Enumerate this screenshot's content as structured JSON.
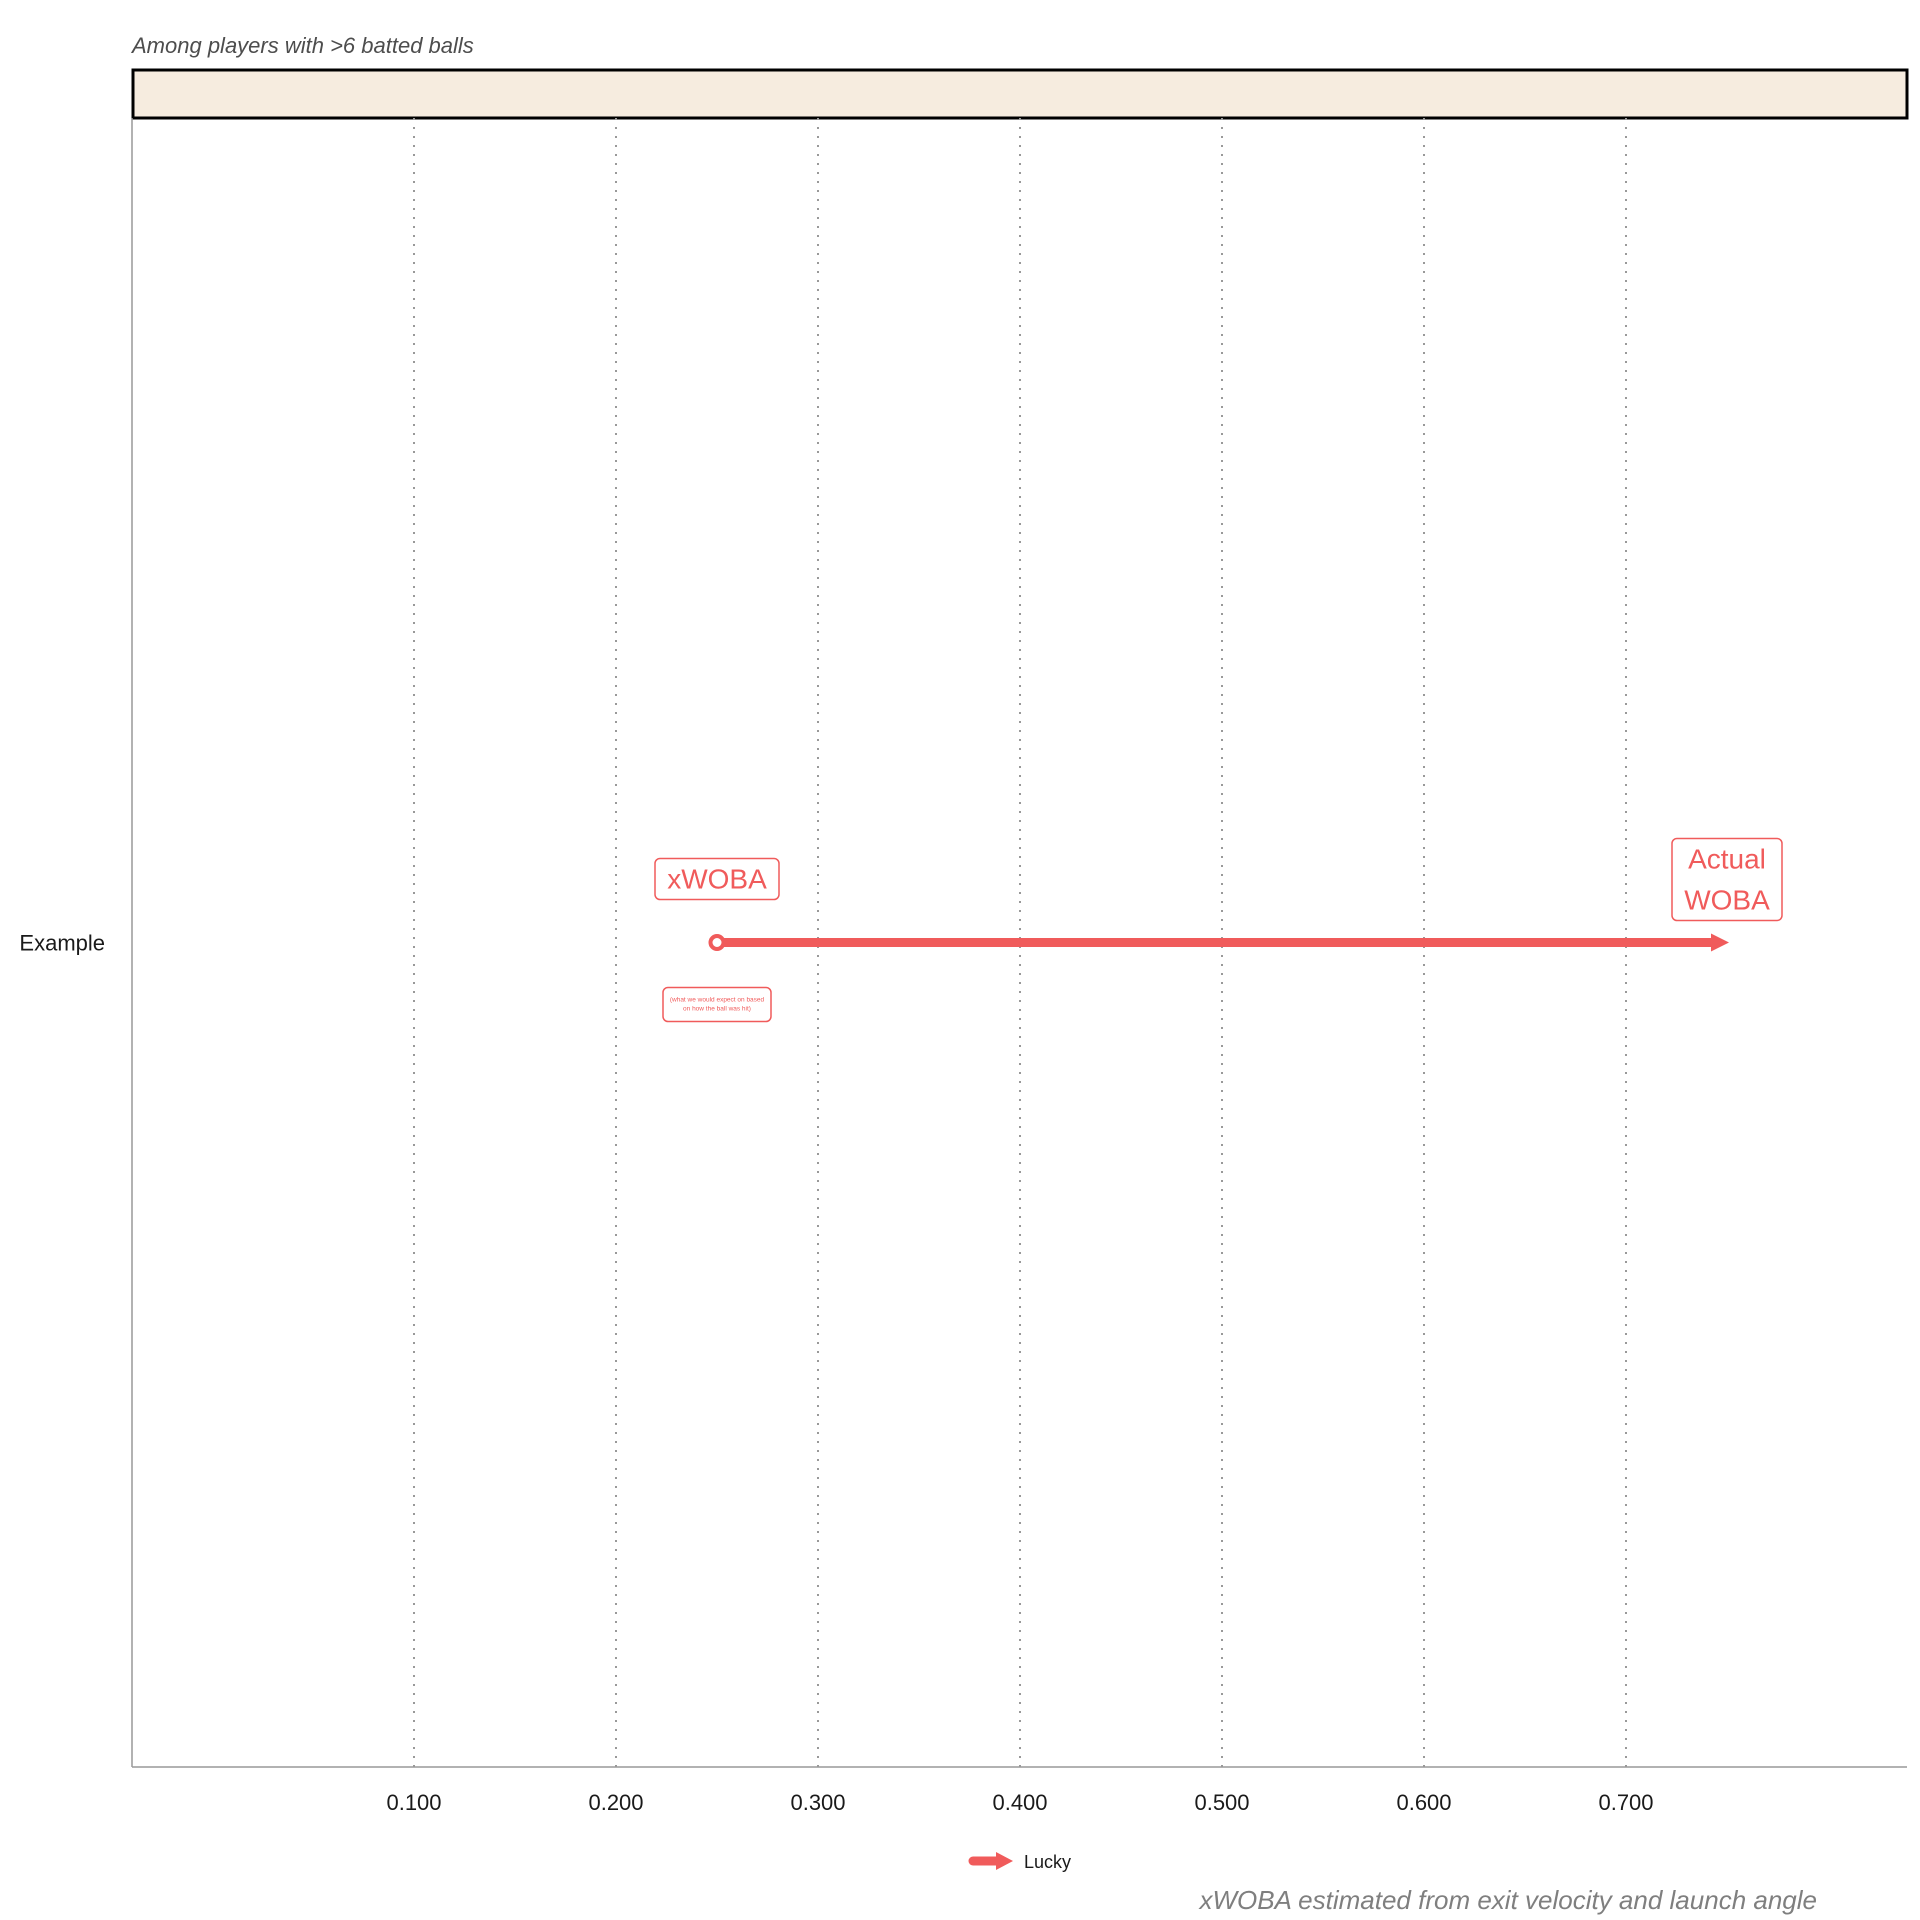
{
  "chart_data": {
    "type": "arrow",
    "subtitle": "Among players with >6 batted balls",
    "caption": "xWOBA estimated from exit velocity and launch angle",
    "categories": [
      "Example"
    ],
    "x_ticks": [
      0.1,
      0.2,
      0.3,
      0.4,
      0.5,
      0.6,
      0.7
    ],
    "x_tick_labels": [
      "0.100",
      "0.200",
      "0.300",
      "0.400",
      "0.500",
      "0.600",
      "0.700"
    ],
    "xlim": [
      -0.04,
      0.84
    ],
    "series": [
      {
        "name": "Lucky",
        "category": "Example",
        "xwoba": 0.25,
        "woba": 0.75
      }
    ],
    "annotations": {
      "start_label": "xWOBA",
      "start_note": "(what we would expect on based on how the ball was hit)",
      "end_label": [
        "Actual",
        "WOBA"
      ]
    },
    "grid": "vertical dotted",
    "legend_position": "bottom",
    "colors": {
      "arrow": "#f05b5b",
      "strip": "#f6ecdf",
      "grid": "#999999"
    }
  }
}
